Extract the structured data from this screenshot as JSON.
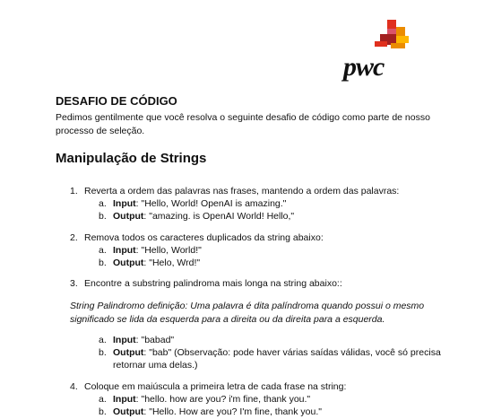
{
  "brand": {
    "logo_text": "pwc"
  },
  "heading": "DESAFIO DE CÓDIGO",
  "intro": "Pedimos gentilmente que você resolva o seguinte desafio de código como parte de nosso processo de seleção.",
  "section_title": "Manipulação de Strings",
  "items": [
    {
      "num": "1.",
      "text": "Reverta a ordem das palavras nas frases, mantendo a ordem das palavras:",
      "subs": [
        {
          "letter": "a.",
          "label": "Input",
          "value": ": \"Hello, World! OpenAI is amazing.\""
        },
        {
          "letter": "b.",
          "label": "Output",
          "value": ": \"amazing. is OpenAI World! Hello,\""
        }
      ]
    },
    {
      "num": "2.",
      "text": "Remova todos os caracteres duplicados da string abaixo:",
      "subs": [
        {
          "letter": "a.",
          "label": "Input",
          "value": ": \"Hello, World!\""
        },
        {
          "letter": "b.",
          "label": "Output",
          "value": ": \"Helo, Wrd!\""
        }
      ]
    },
    {
      "num": "3.",
      "text": "Encontre a substring palindroma mais longa na string abaixo::",
      "definition": "String Palindromo definição: Uma palavra é dita palíndroma quando possui o mesmo significado se lida da esquerda para a direita ou da direita para a esquerda.",
      "subs": [
        {
          "letter": "a.",
          "label": "Input",
          "value": ": \"babad\""
        },
        {
          "letter": "b.",
          "label": "Output",
          "value": ": \"bab\" (Observação: pode haver várias saídas válidas, você só precisa"
        }
      ],
      "continuation": "retornar uma delas.)"
    },
    {
      "num": "4.",
      "text": "Coloque em maiúscula a primeira letra de cada frase na string:",
      "subs": [
        {
          "letter": "a.",
          "label": "Input",
          "value": ": \"hello. how are you? i'm fine, thank you.\""
        },
        {
          "letter": "b.",
          "label": "Output",
          "value": ": \"Hello. How are you? I'm fine, thank you.\""
        }
      ]
    }
  ]
}
